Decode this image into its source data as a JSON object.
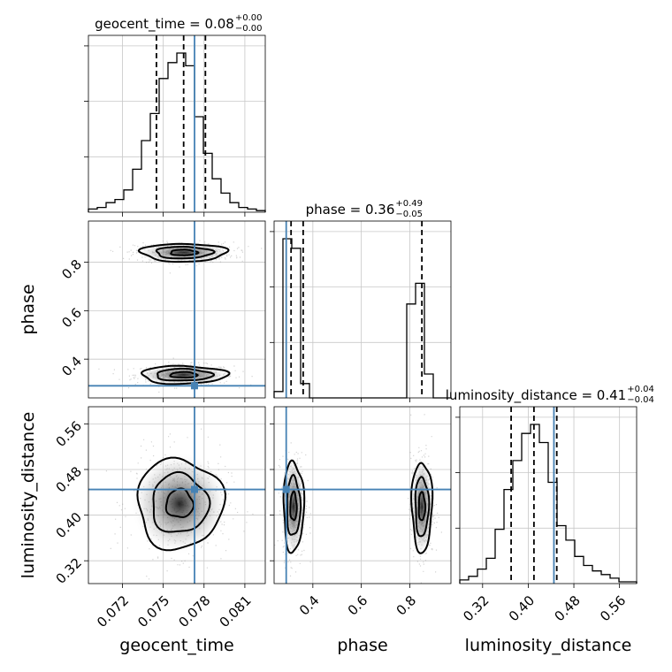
{
  "chart_data": {
    "type": "corner",
    "parameters": [
      "geocent_time",
      "phase",
      "luminosity_distance"
    ],
    "axis_labels": [
      "geocent_time",
      "phase",
      "luminosity_distance"
    ],
    "truths": {
      "geocent_time": 0.0773,
      "phase": 0.29,
      "luminosity_distance": 0.445
    },
    "colors": {
      "truth": "#4682b4",
      "hist": "#000000",
      "quantile": "#000000",
      "points": "#808080",
      "grid": "#c8c8c8"
    },
    "grid": true,
    "ranges": {
      "geocent_time": [
        0.0695,
        0.0825
      ],
      "phase": [
        0.24,
        0.97
      ],
      "luminosity_distance": [
        0.28,
        0.59
      ]
    },
    "ticks": {
      "geocent_time": [
        0.072,
        0.075,
        0.078,
        0.081
      ],
      "phase": [
        0.4,
        0.6,
        0.8
      ],
      "luminosity_distance": [
        0.32,
        0.4,
        0.48,
        0.56
      ]
    },
    "tick_labels": {
      "geocent_time": [
        "0.072",
        "0.075",
        "0.078",
        "0.081"
      ],
      "phase": [
        "0.4",
        "0.6",
        "0.8"
      ],
      "phase_y": [
        "0.4",
        "0.6",
        "0.8"
      ],
      "luminosity_distance": [
        "0.32",
        "0.40",
        "0.48",
        "0.56"
      ]
    },
    "titles": [
      {
        "param": "geocent_time",
        "text": "geocent_time = 0.08",
        "plus": "+0.00",
        "minus": "−0.00"
      },
      {
        "param": "phase",
        "text": "phase = 0.36",
        "plus": "+0.49",
        "minus": "−0.05"
      },
      {
        "param": "luminosity_distance",
        "text": "luminosity_distance = 0.41",
        "plus": "+0.04",
        "minus": "−0.04"
      }
    ],
    "quantiles": {
      "geocent_time": [
        0.0745,
        0.0765,
        0.0781
      ],
      "phase": [
        0.31,
        0.36,
        0.85
      ],
      "luminosity_distance": [
        0.37,
        0.41,
        0.45
      ]
    },
    "histograms": {
      "geocent_time": {
        "edges": [
          0.0695,
          0.07015,
          0.0708,
          0.07145,
          0.0721,
          0.07275,
          0.0734,
          0.07405,
          0.0747,
          0.07535,
          0.076,
          0.07665,
          0.0773,
          0.07795,
          0.0786,
          0.07925,
          0.0799,
          0.08055,
          0.0812,
          0.08185,
          0.0825
        ],
        "counts": [
          2,
          3,
          6,
          8,
          14,
          27,
          45,
          62,
          84,
          94,
          100,
          92,
          60,
          37,
          21,
          12,
          6,
          3,
          2,
          1
        ]
      },
      "phase": {
        "edges": [
          0.24,
          0.2765,
          0.313,
          0.3495,
          0.386,
          0.4225,
          0.459,
          0.4955,
          0.532,
          0.5685,
          0.605,
          0.6415,
          0.678,
          0.7145,
          0.751,
          0.7875,
          0.824,
          0.8605,
          0.897,
          0.9335,
          0.97
        ],
        "counts": [
          4,
          100,
          94,
          9,
          0,
          0,
          0,
          0,
          0,
          0,
          0,
          0,
          0,
          0,
          0,
          59,
          72,
          15,
          0,
          0
        ]
      },
      "luminosity_distance": {
        "edges": [
          0.28,
          0.2955,
          0.311,
          0.3265,
          0.342,
          0.3575,
          0.373,
          0.3885,
          0.404,
          0.4195,
          0.435,
          0.4505,
          0.466,
          0.4815,
          0.497,
          0.5125,
          0.528,
          0.5435,
          0.559,
          0.5745,
          0.59
        ],
        "counts": [
          2,
          4,
          8,
          14,
          30,
          52,
          68,
          83,
          88,
          78,
          56,
          32,
          24,
          15,
          10,
          7,
          5,
          3,
          1,
          1
        ]
      }
    },
    "density_modes": [
      {
        "x": "geocent_time",
        "y": "phase",
        "centers": [
          [
            0.0765,
            0.335
          ],
          [
            0.0765,
            0.84
          ]
        ]
      },
      {
        "x": "geocent_time",
        "y": "luminosity_distance",
        "centers": [
          [
            0.0762,
            0.42
          ]
        ]
      },
      {
        "x": "phase",
        "y": "luminosity_distance",
        "centers": [
          [
            0.32,
            0.415
          ],
          [
            0.85,
            0.415
          ]
        ]
      }
    ]
  }
}
